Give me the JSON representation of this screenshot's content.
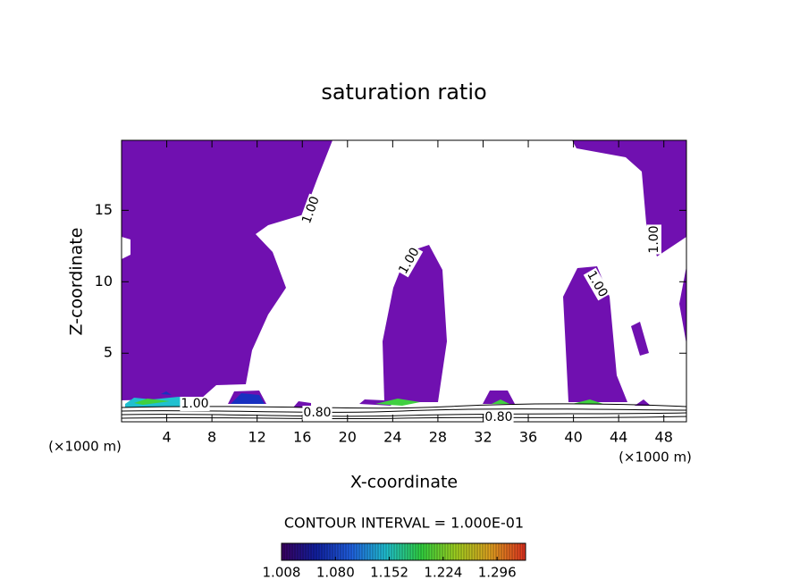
{
  "chart_data": {
    "type": "contour",
    "title": "saturation ratio",
    "x_label": "X-coordinate",
    "y_label": "Z-coordinate",
    "x_unit_label": "(×1000 m)",
    "xlim": [
      0,
      50
    ],
    "ylim": [
      0.2,
      19.9
    ],
    "xticks": [
      4,
      8,
      12,
      16,
      20,
      24,
      28,
      32,
      36,
      40,
      44,
      48
    ],
    "yticks": [
      5,
      10,
      15
    ],
    "fill_color": "#7010b0",
    "contour_labels": [
      {
        "value": 1,
        "label": "1.00"
      },
      {
        "value": 1,
        "label": "1.00"
      },
      {
        "value": 1,
        "label": "1.00"
      },
      {
        "value": 1,
        "label": "1.00"
      },
      {
        "value": 1,
        "label": "1.00"
      },
      {
        "value": 0.8,
        "label": "0.80"
      },
      {
        "value": 0.8,
        "label": "0.80"
      }
    ],
    "contour_interval_text": "CONTOUR INTERVAL = 1.000E-01",
    "colorbar": {
      "lim": [
        1.008,
        1.334
      ],
      "ticks": [
        {
          "value": 1.008,
          "label": "1.008"
        },
        {
          "value": 1.08,
          "label": "1.080"
        },
        {
          "value": 1.152,
          "label": "1.152"
        },
        {
          "value": 1.224,
          "label": "1.224"
        },
        {
          "value": 1.296,
          "label": "1.296"
        }
      ],
      "colors": [
        "#3a0060",
        "#1020a0",
        "#2060e0",
        "#20c0d0",
        "#30d040",
        "#a0d020",
        "#e0a020",
        "#e03020"
      ]
    }
  }
}
